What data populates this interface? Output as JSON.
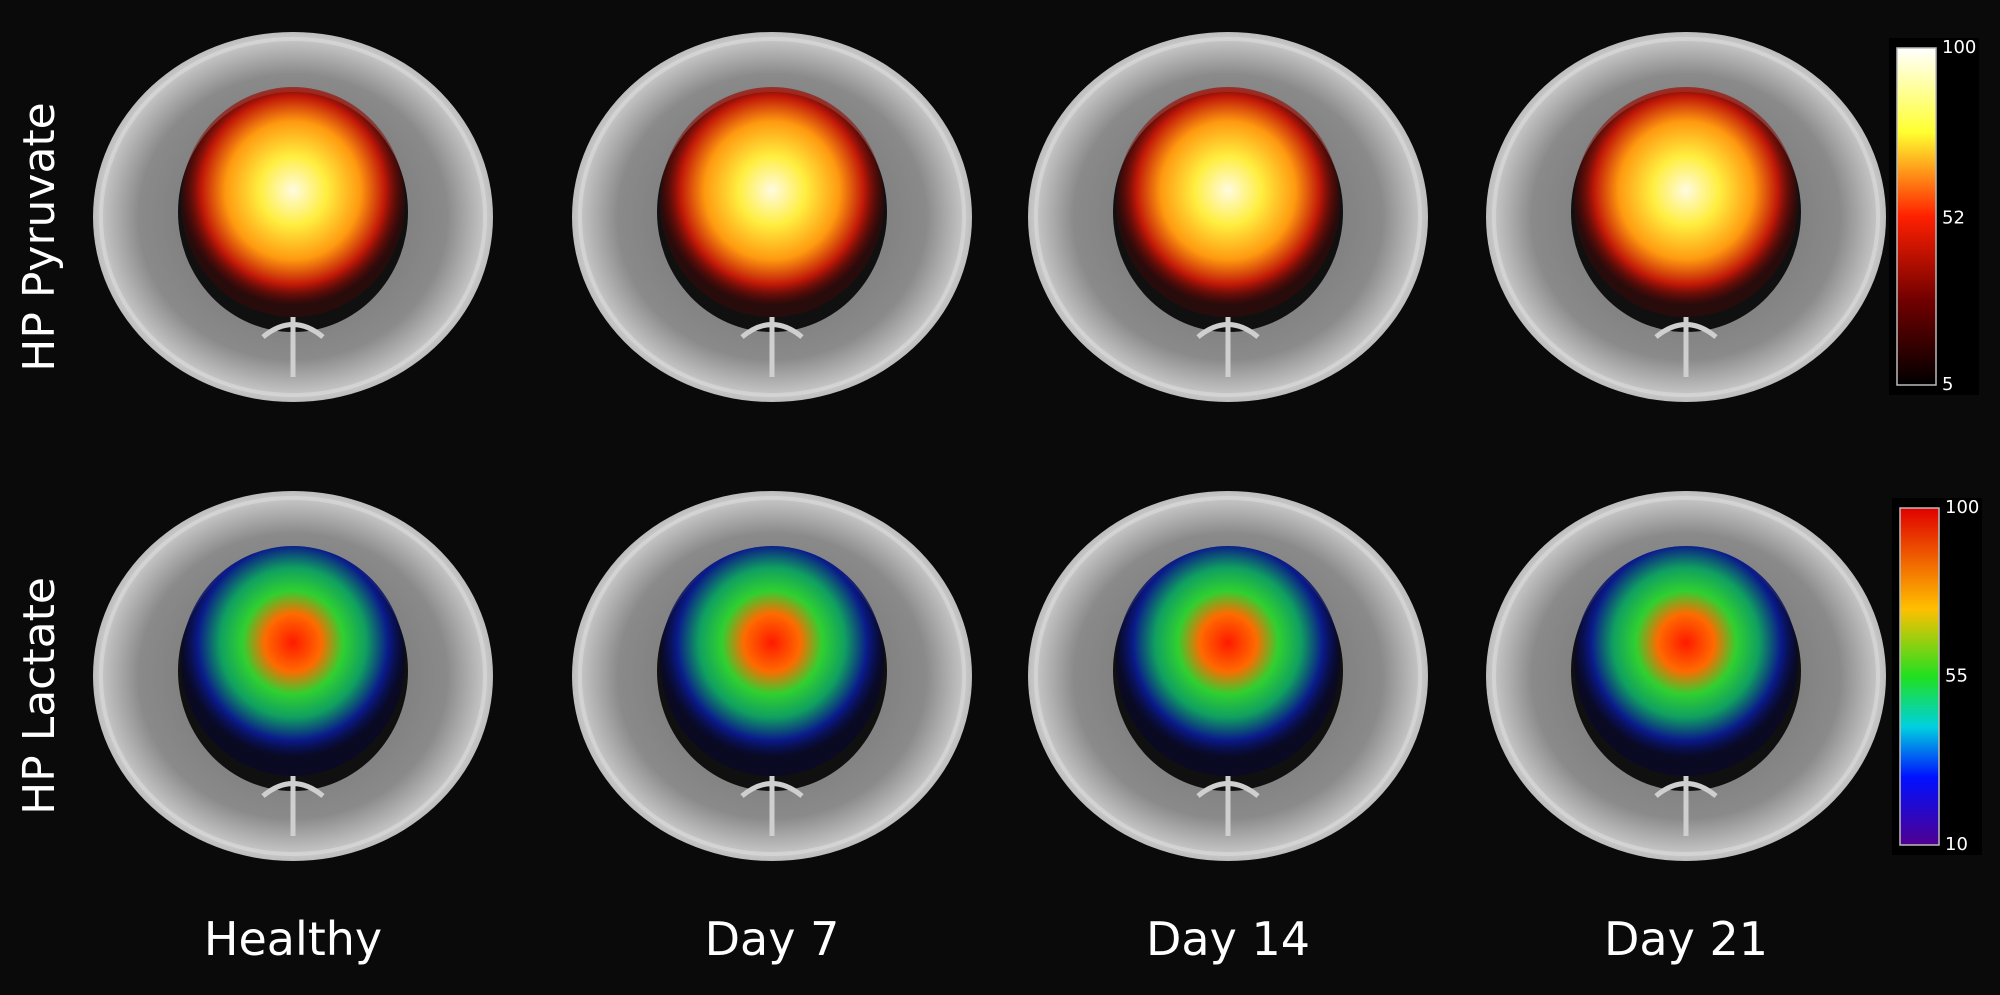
{
  "rows": [
    {
      "label": "HP Pyruvate",
      "colorbar": {
        "ticks": [
          100,
          52,
          5
        ]
      }
    },
    {
      "label": "HP Lactate",
      "colorbar": {
        "ticks": [
          100,
          55,
          10
        ]
      }
    }
  ],
  "columns": [
    "Healthy",
    "Day 7",
    "Day 14",
    "Day 21"
  ]
}
